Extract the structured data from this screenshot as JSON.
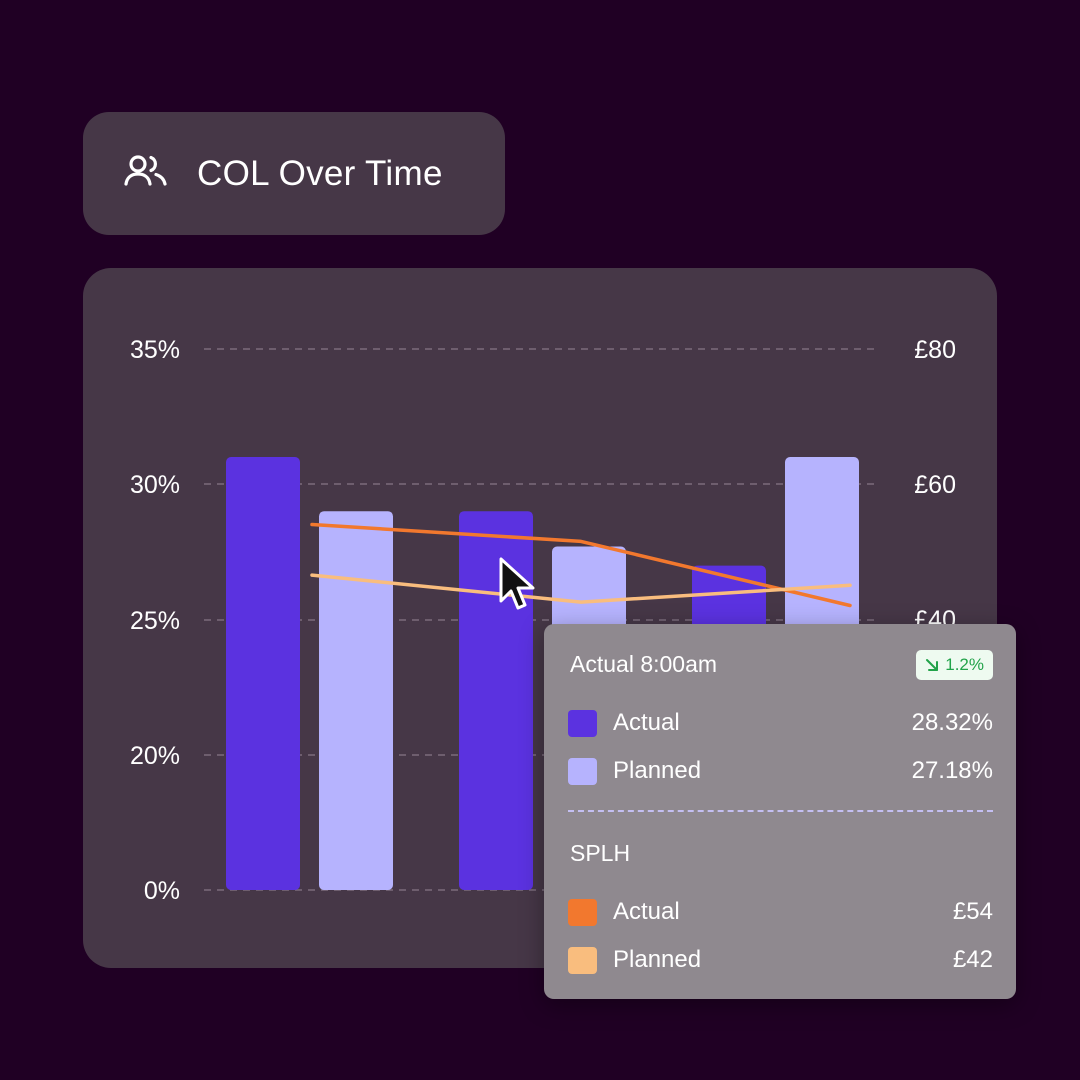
{
  "header": {
    "title": "COL Over Time",
    "icon": "users-icon"
  },
  "chart_data": {
    "type": "bar",
    "title": "COL Over Time",
    "categories": [
      "",
      "",
      ""
    ],
    "left_axis": {
      "ticks": [
        "35%",
        "30%",
        "25%",
        "20%",
        "0%"
      ],
      "tick_values": [
        35,
        30,
        25,
        20,
        0
      ]
    },
    "right_axis": {
      "ticks": [
        "£80",
        "£60",
        "£40"
      ],
      "tick_values": [
        80,
        60,
        40
      ]
    },
    "grid": true,
    "series": [
      {
        "name": "Actual",
        "kind": "bar",
        "color": "#5b32e0",
        "values": [
          31,
          29,
          27
        ]
      },
      {
        "name": "Planned",
        "kind": "bar",
        "color": "#b6b3fe",
        "values": [
          29,
          27.7,
          31
        ]
      }
    ],
    "line_series": [
      {
        "name": "Actual",
        "color": "#f2782e",
        "points": [
          [
            0,
            54
          ],
          [
            1.5,
            51.5
          ],
          [
            3,
            42
          ]
        ]
      },
      {
        "name": "Planned",
        "color": "#f9bd7e",
        "points": [
          [
            0,
            46.5
          ],
          [
            1.5,
            42.5
          ],
          [
            3,
            45
          ]
        ]
      }
    ]
  },
  "tooltip": {
    "title": "Actual 8:00am",
    "badge": "1.2%",
    "badge_icon": "arrow-down-right-icon",
    "col_rows": [
      {
        "label": "Actual",
        "value": "28.32%",
        "color": "#5b32e0"
      },
      {
        "label": "Planned",
        "value": "27.18%",
        "color": "#b6b3fe"
      }
    ],
    "section_title": "SPLH",
    "splh_rows": [
      {
        "label": "Actual",
        "value": "£54",
        "color": "#f2782e"
      },
      {
        "label": "Planned",
        "value": "£42",
        "color": "#f9bd7e"
      }
    ]
  },
  "cursor_icon": "mouse-pointer-icon"
}
